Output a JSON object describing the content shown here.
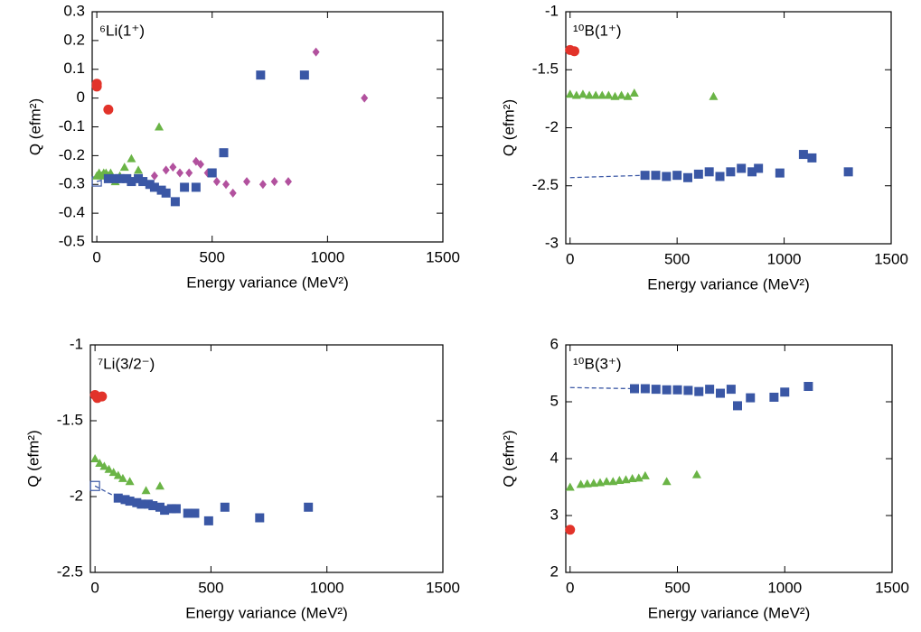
{
  "chart_data": [
    {
      "type": "scatter",
      "label": "⁶Li(1⁺)",
      "xlabel": "Energy variance (MeV²)",
      "ylabel": "Q (efm²)",
      "xlim": [
        -20,
        1500
      ],
      "ylim": [
        -0.5,
        0.3
      ],
      "xticks": [
        0,
        500,
        1000,
        1500
      ],
      "yticks": [
        -0.5,
        -0.4,
        -0.3,
        -0.2,
        -0.1,
        0,
        0.1,
        0.2,
        0.3
      ],
      "series": [
        {
          "marker": "line",
          "color": "#3a57a5",
          "x": [
            0,
            50
          ],
          "values": [
            -0.29,
            -0.28
          ]
        },
        {
          "marker": "open-square",
          "color": "#3a57a5",
          "x": [
            0
          ],
          "values": [
            -0.29
          ]
        },
        {
          "marker": "triangle",
          "color": "#6ab446",
          "x": [
            0,
            10,
            20,
            30,
            40,
            50,
            60,
            70,
            80,
            100,
            120,
            150,
            180,
            270
          ],
          "values": [
            -0.27,
            -0.26,
            -0.27,
            -0.26,
            -0.26,
            -0.27,
            -0.26,
            -0.28,
            -0.29,
            -0.27,
            -0.24,
            -0.21,
            -0.25,
            -0.1
          ]
        },
        {
          "marker": "diamond",
          "color": "#b2519e",
          "x": [
            250,
            300,
            330,
            360,
            400,
            430,
            450,
            480,
            520,
            560,
            590,
            650,
            720,
            770,
            830,
            950,
            1160
          ],
          "values": [
            -0.27,
            -0.25,
            -0.24,
            -0.26,
            -0.26,
            -0.22,
            -0.23,
            -0.26,
            -0.29,
            -0.3,
            -0.33,
            -0.29,
            -0.3,
            -0.29,
            -0.29,
            0.16,
            0
          ]
        },
        {
          "marker": "square",
          "color": "#3a57a5",
          "x": [
            50,
            80,
            100,
            130,
            150,
            180,
            200,
            230,
            250,
            280,
            300,
            340,
            380,
            430,
            500,
            550,
            710,
            900
          ],
          "values": [
            -0.28,
            -0.28,
            -0.28,
            -0.28,
            -0.29,
            -0.28,
            -0.29,
            -0.3,
            -0.31,
            -0.32,
            -0.33,
            -0.36,
            -0.31,
            -0.31,
            -0.26,
            -0.19,
            0.08,
            0.08
          ]
        },
        {
          "marker": "circle",
          "color": "#e2332a",
          "x": [
            0,
            0,
            50
          ],
          "values": [
            0.05,
            0.04,
            -0.04
          ]
        }
      ]
    },
    {
      "type": "scatter",
      "label": "¹⁰B(1⁺)",
      "xlabel": "Energy variance (MeV²)",
      "ylabel": "Q (efm²)",
      "xlim": [
        -20,
        1500
      ],
      "ylim": [
        -3,
        -1
      ],
      "xticks": [
        0,
        500,
        1000,
        1500
      ],
      "yticks": [
        -3,
        -2.5,
        -2,
        -1.5,
        -1
      ],
      "series": [
        {
          "marker": "line",
          "color": "#3a57a5",
          "x": [
            0,
            350
          ],
          "values": [
            -2.43,
            -2.41
          ]
        },
        {
          "marker": "triangle",
          "color": "#6ab446",
          "x": [
            0,
            30,
            60,
            90,
            120,
            150,
            180,
            210,
            240,
            270,
            300,
            670
          ],
          "values": [
            -1.71,
            -1.72,
            -1.71,
            -1.72,
            -1.72,
            -1.72,
            -1.72,
            -1.73,
            -1.72,
            -1.73,
            -1.7,
            -1.73
          ]
        },
        {
          "marker": "square",
          "color": "#3a57a5",
          "x": [
            350,
            400,
            450,
            500,
            550,
            600,
            650,
            700,
            750,
            800,
            850,
            880,
            980,
            1090,
            1130,
            1300
          ],
          "values": [
            -2.41,
            -2.41,
            -2.42,
            -2.41,
            -2.43,
            -2.4,
            -2.38,
            -2.42,
            -2.38,
            -2.35,
            -2.38,
            -2.35,
            -2.39,
            -2.23,
            -2.26,
            -2.38
          ]
        },
        {
          "marker": "circle",
          "color": "#e2332a",
          "x": [
            0,
            20
          ],
          "values": [
            -1.33,
            -1.34
          ]
        }
      ]
    },
    {
      "type": "scatter",
      "label": "⁷Li(3/2⁻)",
      "xlabel": "Energy variance (MeV²)",
      "ylabel": "Q (efm²)",
      "xlim": [
        -20,
        1500
      ],
      "ylim": [
        -2.5,
        -1
      ],
      "xticks": [
        0,
        500,
        1000,
        1500
      ],
      "yticks": [
        -2.5,
        -2,
        -1.5,
        -1
      ],
      "series": [
        {
          "marker": "line",
          "color": "#3a57a5",
          "x": [
            0,
            100
          ],
          "values": [
            -1.93,
            -2.01
          ]
        },
        {
          "marker": "open-square",
          "color": "#3a57a5",
          "x": [
            0
          ],
          "values": [
            -1.93
          ]
        },
        {
          "marker": "triangle",
          "color": "#6ab446",
          "x": [
            0,
            20,
            40,
            60,
            80,
            100,
            120,
            150,
            220,
            280
          ],
          "values": [
            -1.75,
            -1.78,
            -1.8,
            -1.82,
            -1.84,
            -1.86,
            -1.88,
            -1.9,
            -1.96,
            -1.93
          ]
        },
        {
          "marker": "square",
          "color": "#3a57a5",
          "x": [
            100,
            130,
            150,
            180,
            200,
            230,
            250,
            280,
            300,
            330,
            350,
            400,
            430,
            490,
            560,
            710,
            920
          ],
          "values": [
            -2.01,
            -2.02,
            -2.03,
            -2.04,
            -2.05,
            -2.05,
            -2.06,
            -2.07,
            -2.09,
            -2.08,
            -2.08,
            -2.11,
            -2.11,
            -2.16,
            -2.07,
            -2.14,
            -2.07
          ]
        },
        {
          "marker": "circle",
          "color": "#e2332a",
          "x": [
            0,
            10,
            30
          ],
          "values": [
            -1.33,
            -1.35,
            -1.34
          ]
        }
      ]
    },
    {
      "type": "scatter",
      "label": "¹⁰B(3⁺)",
      "xlabel": "Energy variance (MeV²)",
      "ylabel": "Q (efm²)",
      "xlim": [
        -20,
        1500
      ],
      "ylim": [
        2,
        6
      ],
      "xticks": [
        0,
        500,
        1000,
        1500
      ],
      "yticks": [
        2,
        3,
        4,
        5,
        6
      ],
      "series": [
        {
          "marker": "line",
          "color": "#3a57a5",
          "x": [
            0,
            300
          ],
          "values": [
            5.25,
            5.23
          ]
        },
        {
          "marker": "triangle",
          "color": "#6ab446",
          "x": [
            0,
            50,
            80,
            110,
            140,
            170,
            200,
            230,
            260,
            290,
            320,
            350,
            450,
            590
          ],
          "values": [
            3.5,
            3.55,
            3.56,
            3.57,
            3.58,
            3.6,
            3.6,
            3.62,
            3.63,
            3.65,
            3.66,
            3.7,
            3.6,
            3.72
          ]
        },
        {
          "marker": "square",
          "color": "#3a57a5",
          "x": [
            300,
            350,
            400,
            450,
            500,
            550,
            600,
            650,
            700,
            750,
            780,
            840,
            950,
            1000,
            1110
          ],
          "values": [
            5.23,
            5.23,
            5.22,
            5.21,
            5.21,
            5.2,
            5.18,
            5.22,
            5.15,
            5.22,
            4.93,
            5.07,
            5.08,
            5.17,
            5.27
          ]
        },
        {
          "marker": "circle",
          "color": "#e2332a",
          "x": [
            0
          ],
          "values": [
            2.75
          ]
        }
      ]
    }
  ]
}
